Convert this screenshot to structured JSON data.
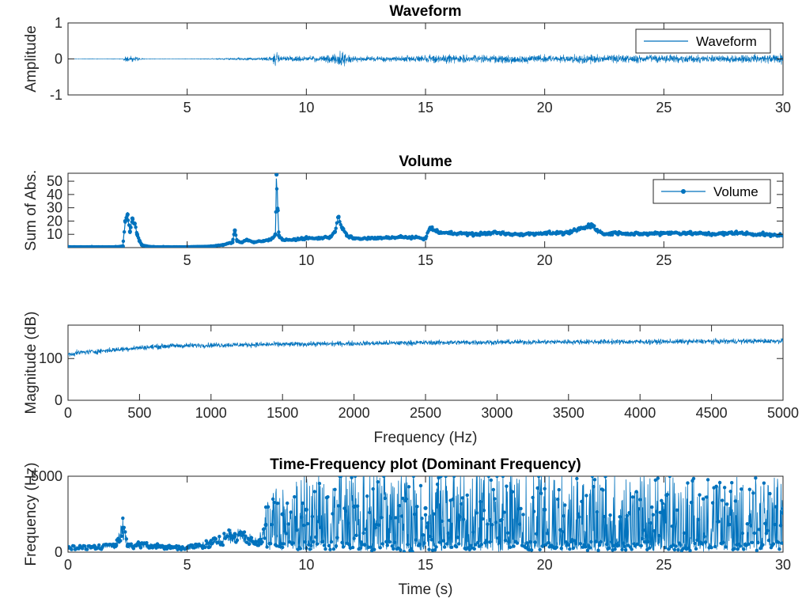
{
  "style": {
    "series_color": "#0072BD",
    "axes_color": "#262626"
  },
  "chart_data": [
    {
      "type": "line",
      "title": "Waveform",
      "xlabel": "",
      "ylabel": "Amplitude",
      "xlim": [
        0,
        30
      ],
      "ylim": [
        -1,
        1
      ],
      "xticks": [
        5,
        10,
        15,
        20,
        25,
        30
      ],
      "yticks": [
        -1,
        0,
        1
      ],
      "legend": {
        "entries": [
          "Waveform"
        ],
        "placement": "top-right",
        "marker": false
      },
      "series": [
        {
          "name": "Waveform",
          "envelope_x": [
            0,
            2.3,
            2.45,
            2.55,
            2.7,
            2.85,
            3.0,
            3.2,
            3.5,
            4,
            5,
            6,
            6.5,
            7,
            7.5,
            8,
            8.5,
            8.75,
            8.9,
            9.5,
            10,
            10.5,
            11,
            11.3,
            11.45,
            11.7,
            12,
            13,
            14,
            15,
            15.2,
            16,
            17,
            18,
            19,
            20,
            21,
            22,
            23,
            24,
            25,
            26,
            27,
            28,
            29,
            30
          ],
          "envelope_y": [
            0.01,
            0.01,
            0.18,
            0.1,
            0.2,
            0.15,
            0.06,
            0.02,
            0.01,
            0.01,
            0.01,
            0.02,
            0.04,
            0.06,
            0.07,
            0.08,
            0.12,
            0.5,
            0.15,
            0.14,
            0.15,
            0.15,
            0.2,
            0.3,
            0.45,
            0.25,
            0.15,
            0.14,
            0.16,
            0.18,
            0.25,
            0.22,
            0.2,
            0.21,
            0.22,
            0.22,
            0.2,
            0.24,
            0.21,
            0.2,
            0.22,
            0.21,
            0.2,
            0.22,
            0.23,
            0.24
          ]
        }
      ]
    },
    {
      "type": "line",
      "title": "Volume",
      "xlabel": "",
      "ylabel": "Sum of Abs.",
      "xlim": [
        0,
        30
      ],
      "ylim": [
        0,
        56
      ],
      "xticks": [
        5,
        10,
        15,
        20,
        25
      ],
      "yticks": [
        10,
        20,
        30,
        40,
        50
      ],
      "legend": {
        "entries": [
          "Volume"
        ],
        "placement": "top-right",
        "marker": true
      },
      "series": [
        {
          "name": "Volume",
          "x": [
            0,
            1,
            2,
            2.3,
            2.4,
            2.5,
            2.6,
            2.7,
            2.8,
            2.9,
            3.0,
            3.1,
            3.3,
            3.6,
            4,
            5,
            6,
            6.5,
            6.9,
            7.0,
            7.1,
            7.3,
            7.5,
            7.8,
            8.2,
            8.5,
            8.7,
            8.75,
            8.8,
            8.85,
            9.0,
            9.5,
            10,
            10.5,
            11,
            11.2,
            11.35,
            11.5,
            11.7,
            12,
            13,
            14,
            15,
            15.2,
            15.5,
            16,
            17,
            18,
            19,
            20,
            21,
            22,
            22.2,
            22.5,
            23,
            24,
            25,
            26,
            27,
            28,
            29,
            30
          ],
          "y": [
            0.5,
            0.5,
            0.5,
            1,
            20,
            25,
            12,
            22,
            18,
            10,
            5,
            2,
            1,
            0.5,
            0.5,
            0.5,
            1,
            2,
            4,
            13,
            5,
            4,
            6,
            4,
            5,
            6,
            10,
            55,
            28,
            9,
            6,
            6,
            7,
            7,
            8,
            12,
            23,
            15,
            9,
            7,
            7,
            8,
            7,
            15,
            12,
            11,
            10,
            11,
            10,
            11,
            11,
            17,
            13,
            10,
            11,
            10,
            11,
            11,
            10,
            11,
            10,
            9
          ]
        }
      ]
    },
    {
      "type": "line",
      "title": "",
      "xlabel": "Frequency (Hz)",
      "ylabel": "Magnitude (dB)",
      "xlim": [
        0,
        5000
      ],
      "ylim": [
        0,
        180
      ],
      "xticks": [
        0,
        500,
        1000,
        1500,
        2000,
        2500,
        3000,
        3500,
        4000,
        4500,
        5000
      ],
      "yticks": [
        0,
        100
      ],
      "series": [
        {
          "name": "",
          "x": [
            0,
            100,
            200,
            300,
            400,
            500,
            700,
            1000,
            1500,
            2000,
            2500,
            3000,
            3500,
            4000,
            4500,
            5000
          ],
          "y": [
            110,
            115,
            117,
            120,
            123,
            126,
            130,
            132,
            134,
            136,
            138,
            139,
            140,
            140,
            141,
            142
          ]
        }
      ]
    },
    {
      "type": "line",
      "title": "Time-Frequency plot (Dominant Frequency)",
      "xlabel": "Time (s)",
      "ylabel": "Frequency (Hz)",
      "xlim": [
        0,
        30
      ],
      "ylim": [
        0,
        5000
      ],
      "xticks": [
        0,
        5,
        10,
        15,
        20,
        25,
        30
      ],
      "yticks": [
        0,
        5000
      ],
      "series": [
        {
          "name": "",
          "x": [
            0,
            2,
            2.3,
            2.5,
            3,
            4,
            5,
            6,
            7,
            8,
            8.3,
            9,
            10,
            12,
            15,
            20,
            25,
            30
          ],
          "y": [
            300,
            400,
            1600,
            400,
            500,
            350,
            300,
            600,
            1200,
            700,
            1800,
            2500,
            2800,
            3000,
            2900,
            2800,
            2700,
            2600
          ]
        }
      ]
    }
  ]
}
